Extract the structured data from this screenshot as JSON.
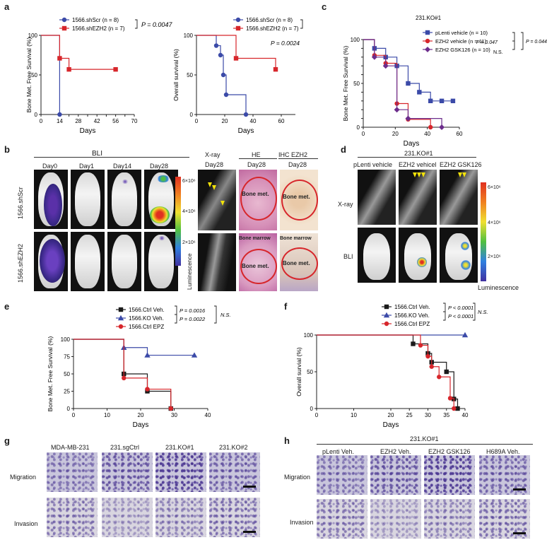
{
  "panels": {
    "a": "a",
    "b": "b",
    "c": "c",
    "d": "d",
    "e": "e",
    "f": "f",
    "g": "g",
    "h": "h"
  },
  "colors": {
    "blue": "#3b4aa8",
    "red": "#d7262b",
    "purple": "#6c2d8c",
    "black": "#1a1a1a"
  },
  "chart_data": [
    {
      "id": "a-left",
      "type": "line",
      "ylabel": "Bone Met. Free Survival (%)",
      "xlabel": "Days",
      "xlim": [
        0,
        70
      ],
      "ylim": [
        0,
        100
      ],
      "xticks": [
        "0",
        "14",
        "21",
        "28",
        "35",
        "42",
        "49",
        "56",
        "63",
        "70"
      ],
      "xtick_labels": [
        "0",
        "14",
        "",
        "28",
        "",
        "42",
        "",
        "56",
        "",
        "70"
      ],
      "yticks": [
        "0",
        "50",
        "100"
      ],
      "series": [
        {
          "name": "1566.shScr (n = 8)",
          "color": "#3b4aa8",
          "marker": "circle",
          "steps": [
            [
              0,
              100
            ],
            [
              14,
              100
            ],
            [
              14,
              0
            ]
          ],
          "points": [
            [
              14,
              0
            ]
          ]
        },
        {
          "name": "1566.shEZH2 (n = 7)",
          "color": "#d7262b",
          "marker": "square",
          "steps": [
            [
              0,
              100
            ],
            [
              14,
              100
            ],
            [
              14,
              71
            ],
            [
              21,
              71
            ],
            [
              21,
              57
            ],
            [
              56,
              57
            ]
          ],
          "points": [
            [
              14,
              71
            ],
            [
              21,
              57
            ],
            [
              56,
              57
            ]
          ]
        }
      ],
      "annotation": "P = 0.0047"
    },
    {
      "id": "a-right",
      "type": "line",
      "ylabel": "Overall survival (%)",
      "xlabel": "Days",
      "xlim": [
        0,
        70
      ],
      "ylim": [
        0,
        100
      ],
      "xticks": [
        "0",
        "20",
        "40",
        "60"
      ],
      "yticks": [
        "0",
        "50",
        "100"
      ],
      "series": [
        {
          "name": "1566.shScr (n = 8)",
          "color": "#3b4aa8",
          "marker": "circle",
          "steps": [
            [
              0,
              100
            ],
            [
              14,
              100
            ],
            [
              14,
              87
            ],
            [
              17,
              87
            ],
            [
              17,
              75
            ],
            [
              19,
              75
            ],
            [
              19,
              50
            ],
            [
              21,
              50
            ],
            [
              21,
              25
            ],
            [
              35,
              25
            ],
            [
              35,
              0
            ]
          ],
          "points": [
            [
              14,
              87
            ],
            [
              17,
              75
            ],
            [
              19,
              50
            ],
            [
              21,
              25
            ],
            [
              35,
              0
            ]
          ]
        },
        {
          "name": "1566.shEZH2 (n = 7)",
          "color": "#d7262b",
          "marker": "square",
          "steps": [
            [
              0,
              100
            ],
            [
              28,
              100
            ],
            [
              28,
              71
            ],
            [
              56,
              71
            ],
            [
              56,
              57
            ]
          ],
          "points": [
            [
              28,
              71
            ],
            [
              56,
              57
            ]
          ]
        }
      ],
      "annotation": "P = 0.0024"
    },
    {
      "id": "c",
      "type": "line",
      "title": "231.KO#1",
      "ylabel": "Bone Met. Free Survival (%)",
      "xlabel": "Days",
      "xlim": [
        0,
        60
      ],
      "ylim": [
        0,
        100
      ],
      "xticks": [
        "0",
        "20",
        "40",
        "60"
      ],
      "yticks": [
        "0",
        "10",
        "20",
        "30",
        "40",
        "50",
        "60",
        "70",
        "80",
        "90",
        "100"
      ],
      "series": [
        {
          "name": "pLenti vehicle (n = 10)",
          "color": "#3b4aa8",
          "marker": "square",
          "steps": [
            [
              0,
              100
            ],
            [
              7,
              100
            ],
            [
              7,
              90
            ],
            [
              14,
              90
            ],
            [
              14,
              80
            ],
            [
              21,
              80
            ],
            [
              21,
              70
            ],
            [
              28,
              70
            ],
            [
              28,
              50
            ],
            [
              35,
              50
            ],
            [
              35,
              40
            ],
            [
              42,
              40
            ],
            [
              42,
              30
            ],
            [
              56,
              30
            ]
          ],
          "points": [
            [
              7,
              90
            ],
            [
              14,
              80
            ],
            [
              21,
              70
            ],
            [
              28,
              50
            ],
            [
              35,
              40
            ],
            [
              42,
              30
            ],
            [
              49,
              30
            ],
            [
              56,
              30
            ]
          ]
        },
        {
          "name": "EZH2 vehicle (n = 11)",
          "color": "#d7262b",
          "marker": "circle",
          "steps": [
            [
              0,
              100
            ],
            [
              7,
              100
            ],
            [
              7,
              82
            ],
            [
              14,
              82
            ],
            [
              14,
              73
            ],
            [
              21,
              73
            ],
            [
              21,
              27
            ],
            [
              28,
              27
            ],
            [
              28,
              9
            ],
            [
              42,
              9
            ],
            [
              42,
              0
            ]
          ],
          "points": [
            [
              7,
              82
            ],
            [
              14,
              73
            ],
            [
              21,
              27
            ],
            [
              28,
              9
            ],
            [
              42,
              0
            ]
          ]
        },
        {
          "name": "EZH2 GSK126 (n = 10)",
          "color": "#6c2d8c",
          "marker": "diamond",
          "steps": [
            [
              0,
              100
            ],
            [
              7,
              100
            ],
            [
              7,
              80
            ],
            [
              14,
              80
            ],
            [
              14,
              70
            ],
            [
              21,
              70
            ],
            [
              21,
              20
            ],
            [
              28,
              20
            ],
            [
              28,
              10
            ],
            [
              49,
              10
            ],
            [
              49,
              0
            ]
          ],
          "points": [
            [
              7,
              80
            ],
            [
              14,
              70
            ],
            [
              21,
              20
            ],
            [
              28,
              10
            ],
            [
              49,
              0
            ]
          ]
        }
      ],
      "annotations": [
        "P = 0.047",
        "N.S.",
        "P = 0.044"
      ]
    },
    {
      "id": "e",
      "type": "line",
      "ylabel": "Bone Met. Free Survival (%)",
      "xlabel": "Days",
      "xlim": [
        0,
        40
      ],
      "ylim": [
        0,
        100
      ],
      "xticks": [
        "0",
        "10",
        "20",
        "30",
        "40"
      ],
      "yticks": [
        "0",
        "25",
        "50",
        "75",
        "100"
      ],
      "series": [
        {
          "name": "1566.Ctrl Veh.",
          "color": "#1a1a1a",
          "marker": "square",
          "steps": [
            [
              0,
              100
            ],
            [
              15,
              100
            ],
            [
              15,
              50
            ],
            [
              22,
              50
            ],
            [
              22,
              25
            ],
            [
              29,
              25
            ],
            [
              29,
              0
            ]
          ],
          "points": [
            [
              15,
              50
            ],
            [
              22,
              25
            ],
            [
              29,
              0
            ]
          ]
        },
        {
          "name": "1566.KO Veh.",
          "color": "#3b4aa8",
          "marker": "triangle",
          "steps": [
            [
              0,
              100
            ],
            [
              15,
              100
            ],
            [
              15,
              88
            ],
            [
              22,
              88
            ],
            [
              22,
              77
            ],
            [
              36,
              77
            ]
          ],
          "points": [
            [
              15,
              88
            ],
            [
              22,
              77
            ],
            [
              36,
              77
            ]
          ]
        },
        {
          "name": "1566.Ctrl EPZ",
          "color": "#d7262b",
          "marker": "circle",
          "steps": [
            [
              0,
              100
            ],
            [
              15,
              100
            ],
            [
              15,
              44
            ],
            [
              22,
              44
            ],
            [
              22,
              28
            ],
            [
              29,
              28
            ],
            [
              29,
              0
            ]
          ],
          "points": [
            [
              15,
              44
            ],
            [
              22,
              28
            ],
            [
              29,
              0
            ]
          ]
        }
      ],
      "annotations": [
        "P = 0.0016",
        "P = 0.0022",
        "N.S."
      ]
    },
    {
      "id": "f",
      "type": "line",
      "ylabel": "Overall survial (%)",
      "xlabel": "Days",
      "xlim": [
        0,
        40
      ],
      "ylim": [
        0,
        100
      ],
      "xticks": [
        "0",
        "10",
        "20",
        "25",
        "30",
        "35",
        "40"
      ],
      "yticks": [
        "0",
        "50",
        "100"
      ],
      "series": [
        {
          "name": "1566.Ctrl Veh.",
          "color": "#1a1a1a",
          "marker": "square",
          "steps": [
            [
              0,
              100
            ],
            [
              26,
              100
            ],
            [
              26,
              88
            ],
            [
              30,
              88
            ],
            [
              30,
              75
            ],
            [
              31,
              75
            ],
            [
              31,
              63
            ],
            [
              35,
              63
            ],
            [
              35,
              50
            ],
            [
              37,
              50
            ],
            [
              37,
              13
            ],
            [
              38,
              13
            ],
            [
              38,
              0
            ]
          ],
          "points": [
            [
              26,
              88
            ],
            [
              30,
              75
            ],
            [
              31,
              63
            ],
            [
              35,
              50
            ],
            [
              37,
              13
            ],
            [
              38,
              0
            ]
          ]
        },
        {
          "name": "1566.KO Veh.",
          "color": "#3b4aa8",
          "marker": "triangle",
          "steps": [
            [
              0,
              100
            ],
            [
              40,
              100
            ]
          ],
          "points": [
            [
              40,
              100
            ]
          ]
        },
        {
          "name": "1566.Ctrl EPZ",
          "color": "#d7262b",
          "marker": "circle",
          "steps": [
            [
              0,
              100
            ],
            [
              28,
              100
            ],
            [
              28,
              86
            ],
            [
              30,
              86
            ],
            [
              30,
              71
            ],
            [
              31,
              71
            ],
            [
              31,
              57
            ],
            [
              33,
              57
            ],
            [
              33,
              43
            ],
            [
              36,
              43
            ],
            [
              36,
              14
            ],
            [
              37,
              14
            ],
            [
              37,
              0
            ]
          ],
          "points": [
            [
              28,
              86
            ],
            [
              30,
              71
            ],
            [
              31,
              57
            ],
            [
              33,
              43
            ],
            [
              36,
              14
            ],
            [
              37,
              0
            ]
          ]
        }
      ],
      "annotations": [
        "P < 0.0001",
        "P < 0.0001",
        "N.S."
      ]
    }
  ],
  "panel_b": {
    "header": "BLI",
    "days": [
      "Day0",
      "Day1",
      "Day14",
      "Day28"
    ],
    "rows": [
      "1566.shScr",
      "1566.shEZH2"
    ],
    "colorbar": [
      "6×10⁶",
      "4×10⁶",
      "2×10⁶"
    ],
    "colorbar_label": "Luminescence",
    "xray_header": "X-ray",
    "he_header": "HE",
    "ihc_header": "IHC EZH2",
    "day28": "Day28",
    "bone_met": "Bone met.",
    "bone_marrow": "Bone marrow"
  },
  "panel_d": {
    "title": "231.KO#1",
    "cols": [
      "pLenti vehicle",
      "EZH2 vehicel",
      "EZH2 GSK126"
    ],
    "rows": [
      "X-ray",
      "BLI"
    ],
    "colorbar": [
      "6×10⁶",
      "4×10⁶",
      "2×10⁶"
    ],
    "colorbar_label": "Luminescence"
  },
  "panel_g": {
    "cols": [
      "MDA-MB-231",
      "231.sgCtrl",
      "231.KO#1",
      "231.KO#2"
    ],
    "rows": [
      "Migration",
      "Invasion"
    ]
  },
  "panel_h": {
    "title": "231.KO#1",
    "cols": [
      "pLenti Veh.",
      "EZH2 Veh.",
      "EZH2 GSK126",
      "H689A Veh."
    ],
    "rows": [
      "Migration",
      "Invasion"
    ]
  }
}
